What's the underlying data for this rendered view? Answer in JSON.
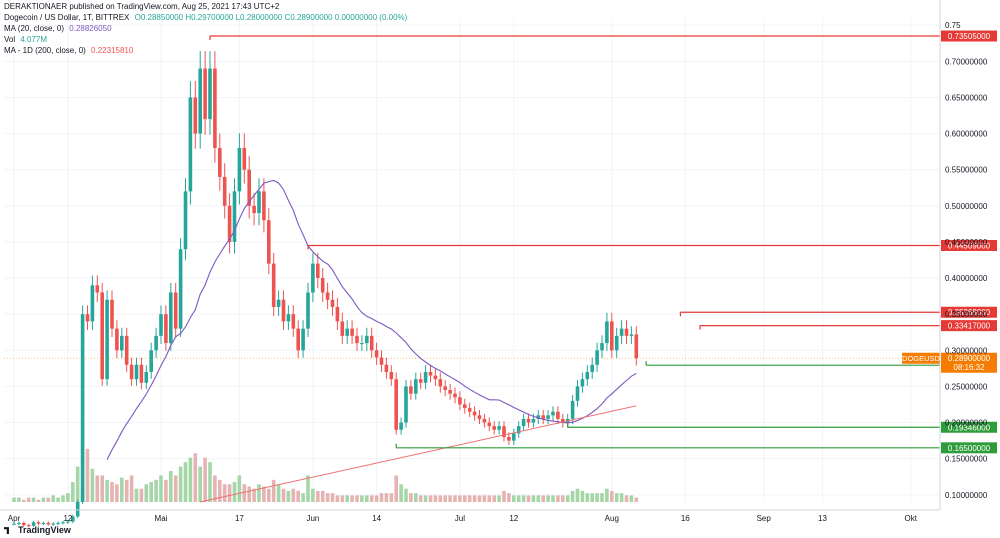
{
  "header": {
    "publisher": "DERAKTIONAER published on TradingView.com, Aug 25, 2021 17:43 UTC+2",
    "symbol": "Dogecoin / US Dollar, 1T, BITTREX",
    "ohlc": "O0.28850000 H0.29700000 L0.28000000 C0.28900000 0.00000000 (0.00%)",
    "ma20_label": "MA (20, close, 0)",
    "ma20_value": "0.28826050",
    "vol_label": "Vol",
    "vol_value": "4.077M",
    "ma200_label": "MA - 1D (200, close, 0)",
    "ma200_value": "0.22315810"
  },
  "footer": {
    "logo_text": "TradingView"
  },
  "colors": {
    "up": "#26a69a",
    "down": "#ef5350",
    "ma20": "#7e57c2",
    "ma200": "#f26f6f",
    "resistance": "#e53935",
    "support": "#2e9c3a",
    "price_tag": "#f57c00"
  },
  "chart_data": {
    "type": "candlestick",
    "title": "Dogecoin / US Dollar, 1T, BITTREX",
    "ylim": [
      0.09,
      0.76
    ],
    "y_ticks": [
      "0.75",
      "0.70000000",
      "0.65000000",
      "0.60000000",
      "0.55000000",
      "0.50000000",
      "0.45000000",
      "0.40000000",
      "0.35000000",
      "0.30000000",
      "0.25000000",
      "0.20000000",
      "0.15000000",
      "0.10000000"
    ],
    "y_tick_values": [
      0.75,
      0.7,
      0.65,
      0.6,
      0.55,
      0.5,
      0.45,
      0.4,
      0.35,
      0.3,
      0.25,
      0.2,
      0.15,
      0.1
    ],
    "x_ticks": [
      "Apr",
      "12",
      "Mai",
      "17",
      "Jun",
      "14",
      "Jul",
      "12",
      "Aug",
      "16",
      "Sep",
      "13",
      "Okt"
    ],
    "x_tick_days": [
      0,
      11,
      30,
      46,
      61,
      74,
      91,
      102,
      122,
      137,
      153,
      165,
      183
    ],
    "x_axis_note": "days since Apr 1, 2021",
    "levels": [
      {
        "price": 0.73505,
        "label": "0.73505000",
        "kind": "resistance",
        "from_day": 40
      },
      {
        "price": 0.44509,
        "label": "0.44509000",
        "kind": "resistance",
        "from_day": 60
      },
      {
        "price": 0.35268,
        "label": "0.35268000",
        "kind": "resistance",
        "from_day": 136
      },
      {
        "price": 0.33417,
        "label": "0.33417000",
        "kind": "resistance",
        "from_day": 140
      },
      {
        "price": 0.27936,
        "label": "0.27936000",
        "kind": "support",
        "from_day": 129
      },
      {
        "price": 0.19346,
        "label": "0.19346000",
        "kind": "support",
        "from_day": 113
      },
      {
        "price": 0.165,
        "label": "0.16500000",
        "kind": "support",
        "from_day": 78
      }
    ],
    "current_price": {
      "symbol": "DOGEUSD",
      "label": "0.28900000",
      "value": 0.289,
      "countdown": "08:16:32"
    },
    "ma20_series_name": "MA (20, close, 0)",
    "ma200_series_name": "MA - 1D (200, close, 0)",
    "closes": [
      0.06,
      0.061,
      0.058,
      0.057,
      0.062,
      0.06,
      0.061,
      0.059,
      0.06,
      0.061,
      0.062,
      0.063,
      0.07,
      0.09,
      0.35,
      0.34,
      0.39,
      0.38,
      0.26,
      0.37,
      0.33,
      0.3,
      0.32,
      0.28,
      0.26,
      0.28,
      0.255,
      0.27,
      0.3,
      0.32,
      0.35,
      0.31,
      0.38,
      0.33,
      0.44,
      0.52,
      0.65,
      0.6,
      0.69,
      0.62,
      0.69,
      0.58,
      0.54,
      0.5,
      0.45,
      0.52,
      0.58,
      0.55,
      0.5,
      0.49,
      0.52,
      0.48,
      0.42,
      0.36,
      0.37,
      0.34,
      0.35,
      0.33,
      0.3,
      0.33,
      0.38,
      0.42,
      0.4,
      0.38,
      0.37,
      0.36,
      0.34,
      0.32,
      0.33,
      0.32,
      0.31,
      0.31,
      0.32,
      0.3,
      0.29,
      0.28,
      0.27,
      0.26,
      0.19,
      0.2,
      0.25,
      0.24,
      0.26,
      0.255,
      0.27,
      0.265,
      0.26,
      0.25,
      0.245,
      0.24,
      0.235,
      0.225,
      0.22,
      0.215,
      0.21,
      0.205,
      0.2,
      0.195,
      0.19,
      0.195,
      0.18,
      0.175,
      0.185,
      0.195,
      0.205,
      0.2,
      0.205,
      0.21,
      0.205,
      0.21,
      0.215,
      0.205,
      0.2,
      0.205,
      0.23,
      0.25,
      0.26,
      0.27,
      0.28,
      0.3,
      0.31,
      0.34,
      0.3,
      0.32,
      0.33,
      0.32,
      0.322,
      0.289
    ],
    "volumes": [
      2,
      2,
      1,
      2,
      2,
      1,
      2,
      2,
      3,
      2,
      3,
      4,
      9,
      16,
      28,
      24,
      15,
      12,
      12,
      10,
      9,
      8,
      11,
      10,
      12,
      6,
      6,
      8,
      9,
      10,
      12,
      10,
      14,
      12,
      16,
      18,
      20,
      22,
      16,
      20,
      18,
      12,
      10,
      8,
      8,
      9,
      12,
      8,
      7,
      6,
      8,
      7,
      6,
      10,
      8,
      6,
      5,
      6,
      5,
      4,
      12,
      6,
      5,
      5,
      4,
      4,
      3,
      3,
      3,
      3,
      3,
      3,
      3,
      3,
      3,
      4,
      4,
      4,
      12,
      8,
      6,
      4,
      4,
      3,
      3,
      3,
      3,
      3,
      3,
      3,
      3,
      3,
      3,
      3,
      3,
      3,
      3,
      3,
      3,
      3,
      5,
      4,
      3,
      3,
      3,
      3,
      3,
      3,
      3,
      3,
      3,
      3,
      3,
      3,
      5,
      6,
      5,
      4,
      4,
      4,
      4,
      6,
      5,
      4,
      4,
      3,
      3,
      2
    ]
  }
}
